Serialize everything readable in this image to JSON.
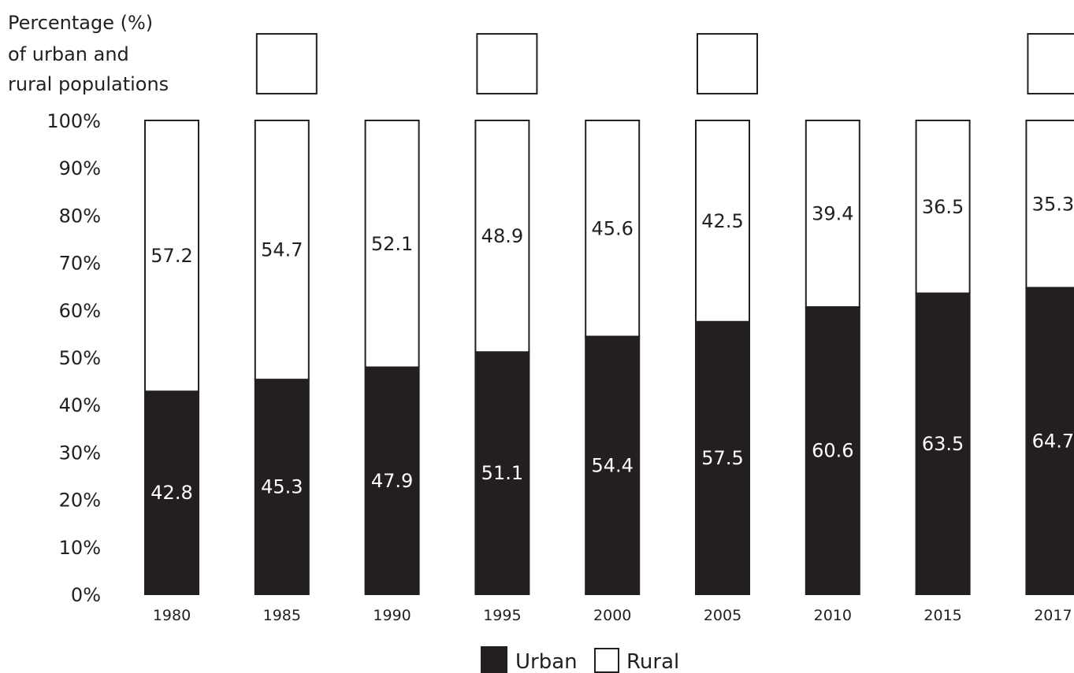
{
  "chart_data": {
    "type": "bar",
    "stacked": true,
    "ylabel": [
      "Percentage (%)",
      "of urban and",
      "rural populations"
    ],
    "yticks": [
      "0%",
      "10%",
      "20%",
      "30%",
      "40%",
      "50%",
      "60%",
      "70%",
      "80%",
      "90%",
      "100%"
    ],
    "ylim": [
      0,
      100
    ],
    "categories": [
      "1980",
      "1985",
      "1990",
      "1995",
      "2000",
      "2005",
      "2010",
      "2015",
      "2017"
    ],
    "series": [
      {
        "name": "Urban",
        "color": "#231f20",
        "values": [
          42.8,
          45.3,
          47.9,
          51.1,
          54.4,
          57.5,
          60.6,
          63.5,
          64.7
        ]
      },
      {
        "name": "Rural",
        "color": "#ffffff",
        "values": [
          57.2,
          54.7,
          52.1,
          48.9,
          45.6,
          42.5,
          39.4,
          36.5,
          35.3
        ]
      }
    ],
    "legend": {
      "position": "bottom",
      "items": [
        "Urban",
        "Rural"
      ]
    },
    "grid": false
  }
}
